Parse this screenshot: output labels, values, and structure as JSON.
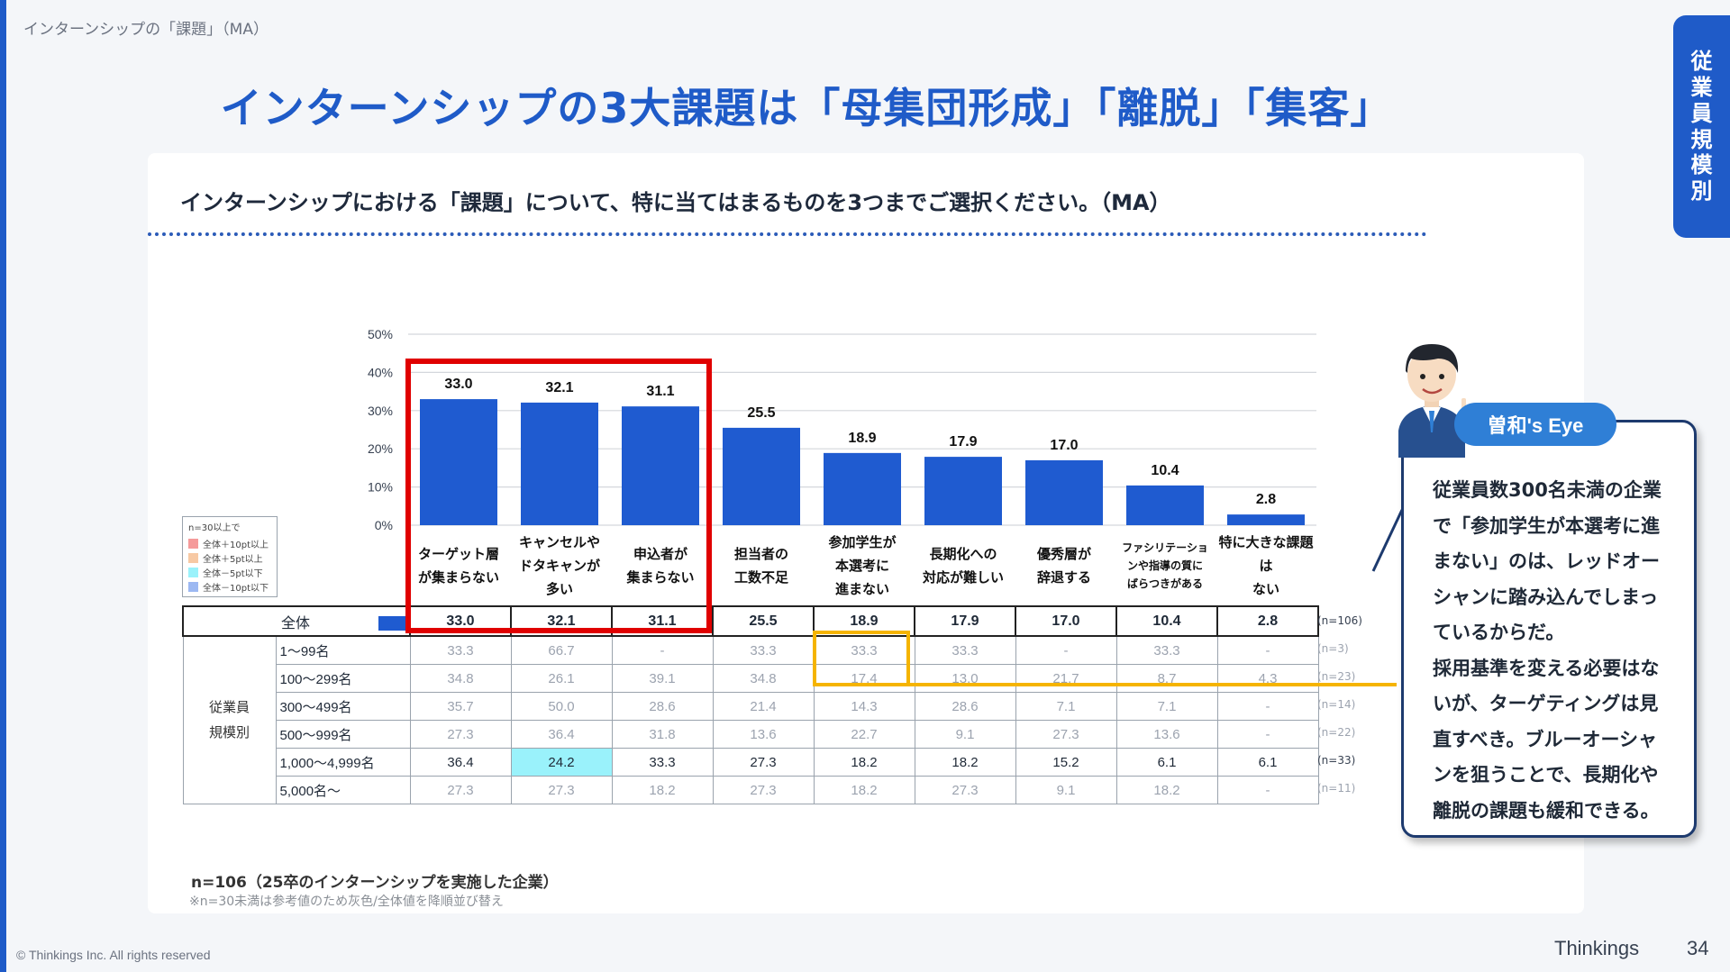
{
  "breadcrumb": "インターンシップの「課題」（MA）",
  "headline": "インターンシップの3大課題は「母集団形成」「離脱」「集客」",
  "side_tab": "従業員規模別",
  "question": "インターンシップにおける「課題」について、特に当てはまるものを3つまでご選択ください。（MA）",
  "legend": {
    "header": "n=30以上で",
    "items": [
      {
        "label": "全体＋10pt以上",
        "color": "#f59a9a"
      },
      {
        "label": "全体＋5pt以上",
        "color": "#f7c9a4"
      },
      {
        "label": "全体－5pt以下",
        "color": "#9af2fb"
      },
      {
        "label": "全体－10pt以下",
        "color": "#9cb8f2"
      }
    ]
  },
  "chart_data": {
    "type": "bar",
    "categories": [
      "ターゲット層\nが集まらない",
      "キャンセルや\nドタキャンが\n多い",
      "申込者が\n集まらない",
      "担当者の\n工数不足",
      "参加学生が\n本選考に\n進まない",
      "長期化への\n対応が難しい",
      "優秀層が\n辞退する",
      "ファシリテーショ\nンや指導の質に\nばらつきがある",
      "特に大きな課題は\nない"
    ],
    "values": [
      33.0,
      32.1,
      31.1,
      25.5,
      18.9,
      17.9,
      17.0,
      10.4,
      2.8
    ],
    "value_labels": [
      "33.0",
      "32.1",
      "31.1",
      "25.5",
      "18.9",
      "17.9",
      "17.0",
      "10.4",
      "2.8"
    ],
    "y_ticks": [
      "0%",
      "10%",
      "20%",
      "30%",
      "40%",
      "50%"
    ],
    "ylim": [
      0,
      50
    ],
    "bar_color": "#1f5bd0",
    "grid": true
  },
  "table": {
    "total_label": "全体",
    "total_n": "(n=106)",
    "group_label": "従業員\n規模別",
    "rows": [
      {
        "label": "1～99名",
        "values": [
          "33.3",
          "66.7",
          "-",
          "33.3",
          "33.3",
          "33.3",
          "-",
          "33.3",
          "-"
        ],
        "n": "(n=3)",
        "reference": true
      },
      {
        "label": "100～299名",
        "values": [
          "34.8",
          "26.1",
          "39.1",
          "34.8",
          "17.4",
          "13.0",
          "21.7",
          "8.7",
          "4.3"
        ],
        "n": "(n=23)",
        "reference": true
      },
      {
        "label": "300～499名",
        "values": [
          "35.7",
          "50.0",
          "28.6",
          "21.4",
          "14.3",
          "28.6",
          "7.1",
          "7.1",
          "-"
        ],
        "n": "(n=14)",
        "reference": true
      },
      {
        "label": "500～999名",
        "values": [
          "27.3",
          "36.4",
          "31.8",
          "13.6",
          "22.7",
          "9.1",
          "27.3",
          "13.6",
          "-"
        ],
        "n": "(n=22)",
        "reference": true
      },
      {
        "label": "1,000～4,999名",
        "values": [
          "36.4",
          "24.2",
          "33.3",
          "27.3",
          "18.2",
          "18.2",
          "15.2",
          "6.1",
          "6.1"
        ],
        "n": "(n=33)",
        "reference": false
      },
      {
        "label": "5,000名～",
        "values": [
          "27.3",
          "27.3",
          "18.2",
          "27.3",
          "18.2",
          "27.3",
          "9.1",
          "18.2",
          "-"
        ],
        "n": "(n=11)",
        "reference": true
      }
    ]
  },
  "footnote_main": "n=106（25卒のインターンシップを実施した企業）",
  "footnote_sub": "※n=30未満は参考値のため灰色/全体値を降順並び替え",
  "eye": {
    "badge": "曽和's Eye",
    "text": "従業員数300名未満の企業で「参加学生が本選考に進まない」のは、レッドオーシャンに踏み込んでしまっているからだ。\n採用基準を変える必要はないが、ターゲティングは見直すべき。ブルーオーシャンを狙うことで、長期化や離脱の課題も緩和できる。"
  },
  "footer": {
    "copyright": "© Thinkings Inc. All rights reserved",
    "brand": "Thinkings",
    "page": "34"
  }
}
